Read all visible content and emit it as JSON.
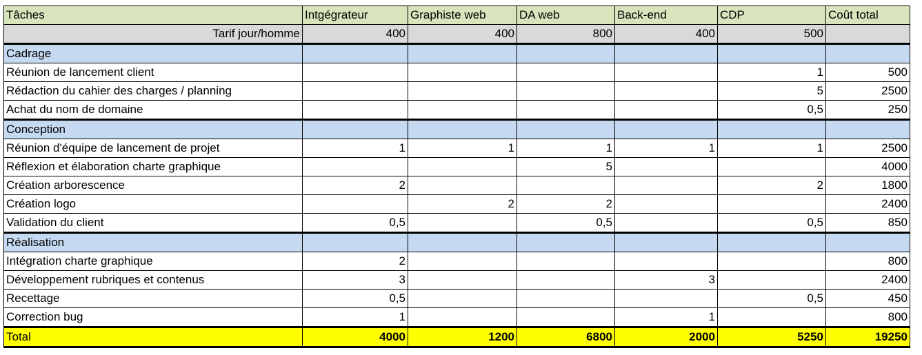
{
  "headers": [
    "Tâches",
    "Intgégrateur",
    "Graphiste web",
    "DA web",
    "Back-end",
    "CDP",
    "Coût total"
  ],
  "rate_row": {
    "label": "Tarif jour/homme",
    "values": [
      "400",
      "400",
      "800",
      "400",
      "500",
      ""
    ]
  },
  "sections": [
    {
      "name": "Cadrage",
      "rows": [
        {
          "task": "Réunion de lancement client",
          "cells": [
            "",
            "",
            "",
            "",
            "1",
            "500"
          ]
        },
        {
          "task": "Rédaction du cahier des charges / planning",
          "cells": [
            "",
            "",
            "",
            "",
            "5",
            "2500"
          ]
        },
        {
          "task": "Achat du nom de domaine",
          "cells": [
            "",
            "",
            "",
            "",
            "0,5",
            "250"
          ]
        }
      ]
    },
    {
      "name": "Conception",
      "rows": [
        {
          "task": "Réunion d'équipe de lancement de projet",
          "cells": [
            "1",
            "1",
            "1",
            "1",
            "1",
            "2500"
          ]
        },
        {
          "task": "Réflexion et élaboration charte graphique",
          "cells": [
            "",
            "",
            "5",
            "",
            "",
            "4000"
          ]
        },
        {
          "task": "Création arborescence",
          "cells": [
            "2",
            "",
            "",
            "",
            "2",
            "1800"
          ]
        },
        {
          "task": "Création logo",
          "cells": [
            "",
            "2",
            "2",
            "",
            "",
            "2400"
          ]
        },
        {
          "task": "Validation du client",
          "cells": [
            "0,5",
            "",
            "0,5",
            "",
            "0,5",
            "850"
          ]
        }
      ]
    },
    {
      "name": "Réalisation",
      "rows": [
        {
          "task": "Intégration charte graphique",
          "cells": [
            "2",
            "",
            "",
            "",
            "",
            "800"
          ]
        },
        {
          "task": "Développement rubriques et contenus",
          "cells": [
            "3",
            "",
            "",
            "3",
            "",
            "2400"
          ]
        },
        {
          "task": "Recettage",
          "cells": [
            "0,5",
            "",
            "",
            "",
            "0,5",
            "450"
          ]
        },
        {
          "task": "Correction bug",
          "cells": [
            "1",
            "",
            "",
            "1",
            "",
            "800"
          ]
        }
      ]
    }
  ],
  "total_row": {
    "label": "Total",
    "values": [
      "4000",
      "1200",
      "6800",
      "2000",
      "5250",
      "19250"
    ]
  }
}
